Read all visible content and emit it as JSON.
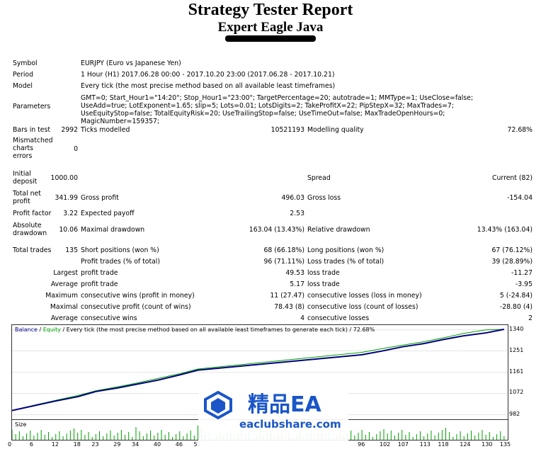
{
  "header": {
    "title": "Strategy Tester Report",
    "subtitle": "Expert Eagle Java"
  },
  "report": {
    "symbol_label": "Symbol",
    "symbol_value": "EURJPY (Euro vs Japanese Yen)",
    "period_label": "Period",
    "period_value": "1 Hour (H1) 2017.06.28 00:00 - 2017.10.20 23:00 (2017.06.28 - 2017.10.21)",
    "model_label": "Model",
    "model_value": "Every tick (the most precise method based on all available least timeframes)",
    "parameters_label": "Parameters",
    "parameters_value": "GMT=0; Start_Hour1=\"14:20\"; Stop_Hour1=\"23:00\"; TargetPercentage=20; autotrade=1; MMType=1; UseClose=false; UseAdd=true; LotExponent=1.65; slip=5; Lots=0.01; LotsDigits=2; TakeProfitX=22; PipStepX=32; MaxTrades=7; UseEquityStop=false; TotalEquityRisk=20; UseTrailingStop=false; UseTimeOut=false; MaxTradeOpenHours=0; MagicNumber=159357;",
    "bars_label": "Bars in test",
    "bars_value": "2992",
    "ticks_label": "Ticks modelled",
    "ticks_value": "10521193",
    "quality_label": "Modelling quality",
    "quality_value": "72.68%",
    "mismatched_label": "Mismatched charts errors",
    "mismatched_value": "0",
    "deposit_label": "Initial deposit",
    "deposit_value": "1000.00",
    "spread_label": "Spread",
    "spread_value": "Current (82)",
    "net_profit_label": "Total net profit",
    "net_profit_value": "341.99",
    "gross_profit_label": "Gross profit",
    "gross_profit_value": "496.03",
    "gross_loss_label": "Gross loss",
    "gross_loss_value": "-154.04",
    "profit_factor_label": "Profit factor",
    "profit_factor_value": "3.22",
    "expected_payoff_label": "Expected payoff",
    "expected_payoff_value": "2.53",
    "abs_dd_label": "Absolute drawdown",
    "abs_dd_value": "10.06",
    "max_dd_label": "Maximal drawdown",
    "max_dd_value": "163.04 (13.43%)",
    "rel_dd_label": "Relative drawdown",
    "rel_dd_value": "13.43% (163.04)",
    "total_trades_label": "Total trades",
    "total_trades_value": "135",
    "short_label": "Short positions (won %)",
    "short_value": "68 (66.18%)",
    "long_label": "Long positions (won %)",
    "long_value": "67 (76.12%)",
    "profit_trades_label": "Profit trades (% of total)",
    "profit_trades_value": "96 (71.11%)",
    "loss_trades_label": "Loss trades (% of total)",
    "loss_trades_value": "39 (28.89%)",
    "largest_label": "Largest",
    "largest_profit_label": "profit trade",
    "largest_profit_value": "49.53",
    "largest_loss_label": "loss trade",
    "largest_loss_value": "-11.27",
    "average_label": "Average",
    "avg_profit_label": "profit trade",
    "avg_profit_value": "5.17",
    "avg_loss_label": "loss trade",
    "avg_loss_value": "-3.95",
    "maximum_label": "Maximum",
    "max_wins_label": "consecutive wins (profit in money)",
    "max_wins_value": "11 (27.47)",
    "max_losses_label": "consecutive losses (loss in money)",
    "max_losses_value": "5 (-24.84)",
    "maximal_label": "Maximal",
    "maximal_profit_label": "consecutive profit (count of wins)",
    "maximal_profit_value": "78.43 (8)",
    "maximal_loss_label": "consecutive loss (count of losses)",
    "maximal_loss_value": "-28.80 (4)",
    "avg2_label": "Average",
    "avg_cons_wins_label": "consecutive wins",
    "avg_cons_wins_value": "4",
    "avg_cons_losses_label": "consecutive losses",
    "avg_cons_losses_value": "2"
  },
  "chart": {
    "legend_balance": "Balance",
    "legend_sep": " / ",
    "legend_equity": "Equity",
    "legend_rest": " / Every tick (the most precise method based on all available least timeframes to generate each tick) / 72.68%",
    "size_label": "Size",
    "balance_color": "#000080",
    "equity_color": "#00a000",
    "volume_color": "#00a000",
    "y_labels": [
      "1340",
      "1251",
      "1161",
      "1072",
      "982"
    ],
    "x_labels": [
      "0",
      "6",
      "12",
      "18",
      "23",
      "29",
      "34",
      "40",
      "46",
      "51",
      "96",
      "102",
      "107",
      "113",
      "118",
      "124",
      "130",
      "135"
    ]
  },
  "watermark": {
    "cn": "精品EA",
    "url": "eaclubshare.com"
  },
  "chart_data": {
    "type": "line",
    "title": "",
    "xlabel": "",
    "ylabel": "",
    "ylim": [
      960,
      1360
    ],
    "x": [
      0,
      6,
      12,
      18,
      23,
      29,
      34,
      40,
      46,
      51,
      96,
      102,
      107,
      113,
      118,
      124,
      130,
      135
    ],
    "series": [
      {
        "name": "Balance",
        "values": [
          1000,
          1020,
          1040,
          1058,
          1080,
          1095,
          1110,
          1128,
          1150,
          1170,
          1235,
          1252,
          1268,
          1282,
          1298,
          1315,
          1327,
          1342
        ]
      },
      {
        "name": "Equity",
        "values": [
          1000,
          1022,
          1043,
          1063,
          1083,
          1100,
          1115,
          1135,
          1155,
          1175,
          1245,
          1262,
          1275,
          1290,
          1305,
          1325,
          1340,
          1342
        ]
      }
    ]
  }
}
